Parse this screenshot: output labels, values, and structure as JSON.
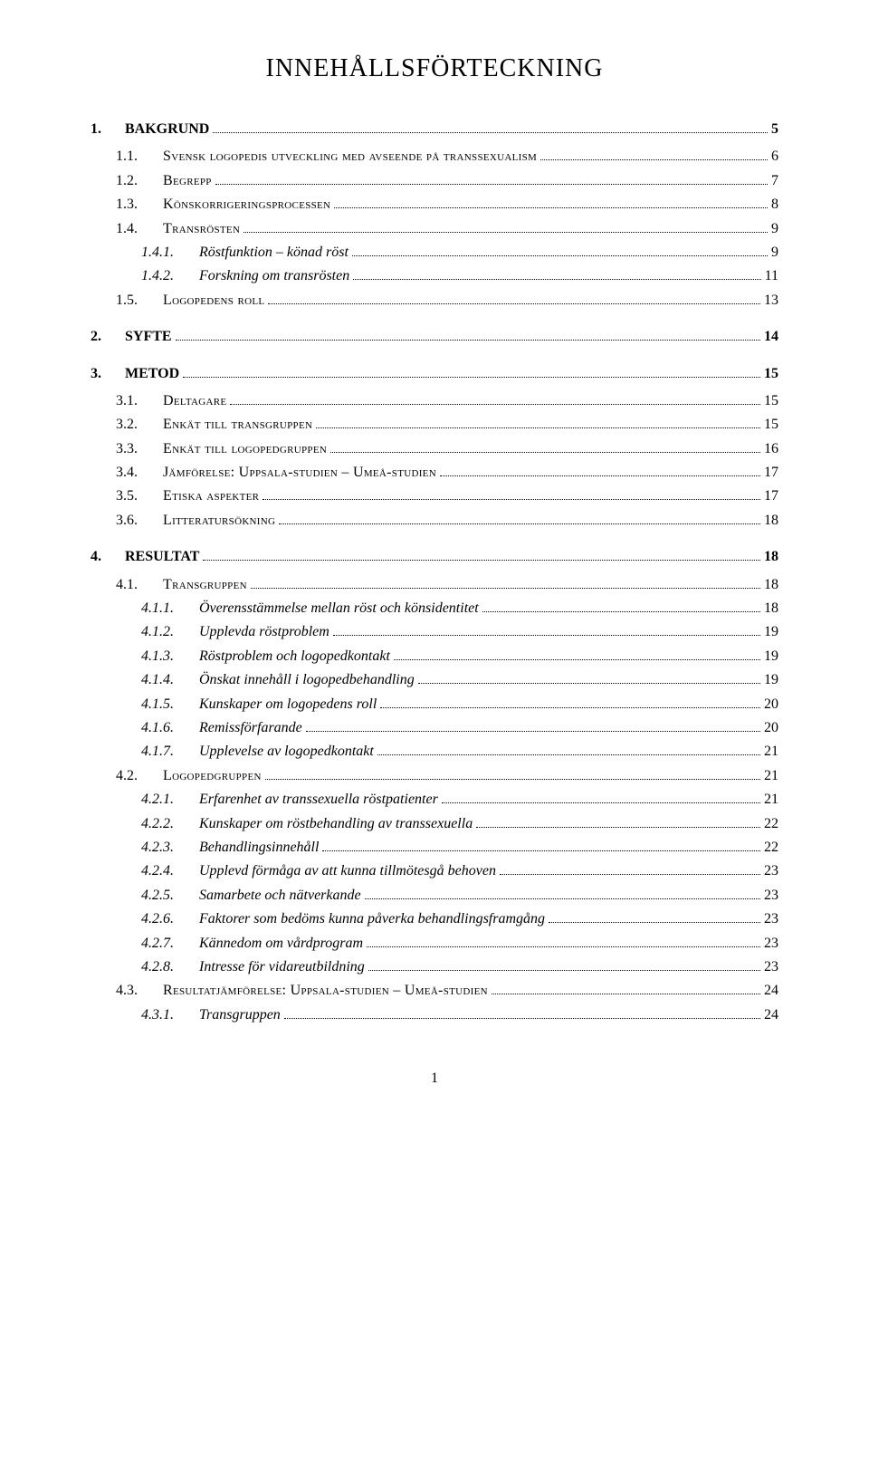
{
  "title": "INNEHÅLLSFÖRTECKNING",
  "page_number": "1",
  "colors": {
    "text": "#000000",
    "background": "#ffffff"
  },
  "typography": {
    "font_family": "Times New Roman",
    "title_fontsize_pt": 21,
    "body_fontsize_pt": 12
  },
  "entries": [
    {
      "level": 1,
      "num": "1.",
      "label": "BAKGRUND",
      "page": "5"
    },
    {
      "level": 2,
      "num": "1.1.",
      "label": "Svensk logopedis utveckling med avseende på transsexualism",
      "page": "6"
    },
    {
      "level": 2,
      "num": "1.2.",
      "label": "Begrepp",
      "page": "7"
    },
    {
      "level": 2,
      "num": "1.3.",
      "label": "Könskorrigeringsprocessen",
      "page": "8"
    },
    {
      "level": 2,
      "num": "1.4.",
      "label": "Transrösten",
      "page": "9"
    },
    {
      "level": 3,
      "num": "1.4.1.",
      "label": "Röstfunktion – könad röst",
      "page": "9"
    },
    {
      "level": 3,
      "num": "1.4.2.",
      "label": "Forskning om transrösten",
      "page": "11"
    },
    {
      "level": 2,
      "num": "1.5.",
      "label": "Logopedens roll",
      "page": "13"
    },
    {
      "level": 1,
      "num": "2.",
      "label": "SYFTE",
      "page": "14"
    },
    {
      "level": 1,
      "num": "3.",
      "label": "METOD",
      "page": "15"
    },
    {
      "level": 2,
      "num": "3.1.",
      "label": "Deltagare",
      "page": "15"
    },
    {
      "level": 2,
      "num": "3.2.",
      "label": "Enkät till transgruppen",
      "page": "15"
    },
    {
      "level": 2,
      "num": "3.3.",
      "label": "Enkät till logopedgruppen",
      "page": "16"
    },
    {
      "level": 2,
      "num": "3.4.",
      "label": "Jämförelse: Uppsala-studien – Umeå-studien",
      "page": "17"
    },
    {
      "level": 2,
      "num": "3.5.",
      "label": "Etiska aspekter",
      "page": "17"
    },
    {
      "level": 2,
      "num": "3.6.",
      "label": "Litteratursökning",
      "page": "18"
    },
    {
      "level": 1,
      "num": "4.",
      "label": "RESULTAT",
      "page": "18"
    },
    {
      "level": 2,
      "num": "4.1.",
      "label": "Transgruppen",
      "page": "18"
    },
    {
      "level": 3,
      "num": "4.1.1.",
      "label": "Överensstämmelse mellan röst och könsidentitet",
      "page": "18"
    },
    {
      "level": 3,
      "num": "4.1.2.",
      "label": "Upplevda röstproblem",
      "page": "19"
    },
    {
      "level": 3,
      "num": "4.1.3.",
      "label": "Röstproblem och logopedkontakt",
      "page": "19"
    },
    {
      "level": 3,
      "num": "4.1.4.",
      "label": "Önskat innehåll i logopedbehandling",
      "page": "19"
    },
    {
      "level": 3,
      "num": "4.1.5.",
      "label": "Kunskaper om logopedens roll",
      "page": "20"
    },
    {
      "level": 3,
      "num": "4.1.6.",
      "label": "Remissförfarande",
      "page": "20"
    },
    {
      "level": 3,
      "num": "4.1.7.",
      "label": "Upplevelse av logopedkontakt",
      "page": "21"
    },
    {
      "level": 2,
      "num": "4.2.",
      "label": "Logopedgruppen",
      "page": "21"
    },
    {
      "level": 3,
      "num": "4.2.1.",
      "label": "Erfarenhet av transsexuella röstpatienter",
      "page": "21"
    },
    {
      "level": 3,
      "num": "4.2.2.",
      "label": "Kunskaper om röstbehandling av transsexuella",
      "page": "22"
    },
    {
      "level": 3,
      "num": "4.2.3.",
      "label": "Behandlingsinnehåll",
      "page": "22"
    },
    {
      "level": 3,
      "num": "4.2.4.",
      "label": "Upplevd förmåga av att kunna tillmötesgå behoven",
      "page": "23"
    },
    {
      "level": 3,
      "num": "4.2.5.",
      "label": "Samarbete och nätverkande",
      "page": "23"
    },
    {
      "level": 3,
      "num": "4.2.6.",
      "label": "Faktorer som bedöms kunna påverka behandlingsframgång",
      "page": "23"
    },
    {
      "level": 3,
      "num": "4.2.7.",
      "label": "Kännedom om vårdprogram",
      "page": "23"
    },
    {
      "level": 3,
      "num": "4.2.8.",
      "label": "Intresse för vidareutbildning",
      "page": "23"
    },
    {
      "level": 2,
      "num": "4.3.",
      "label": "Resultatjämförelse: Uppsala-studien – Umeå-studien",
      "page": "24"
    },
    {
      "level": 3,
      "num": "4.3.1.",
      "label": "Transgruppen",
      "page": "24"
    }
  ]
}
